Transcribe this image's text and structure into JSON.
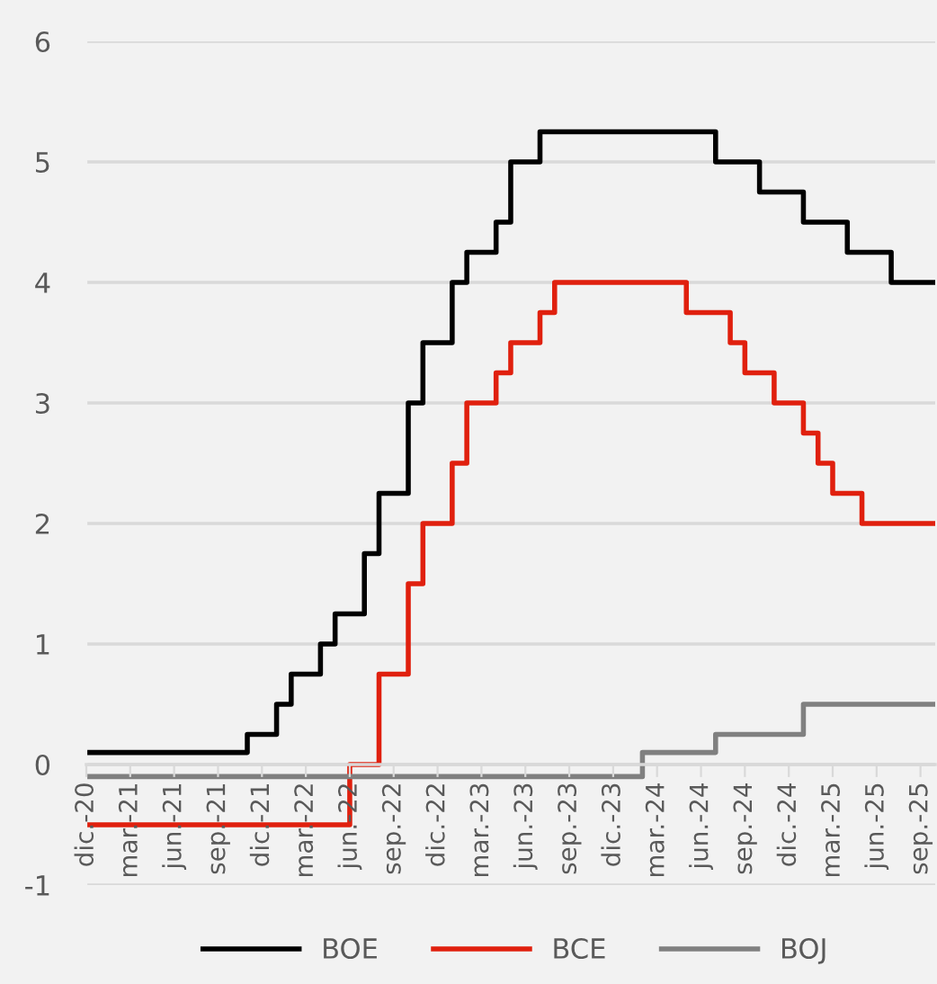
{
  "chart_data": {
    "type": "step",
    "categories": [
      "dic.-20",
      null,
      null,
      "mar.-21",
      null,
      null,
      "jun.-21",
      null,
      null,
      "sep.-21",
      null,
      null,
      "dic.-21",
      null,
      null,
      "mar.-22",
      null,
      null,
      "jun.-22",
      null,
      null,
      "sep.-22",
      null,
      null,
      "dic.-22",
      null,
      null,
      "mar.-23",
      null,
      null,
      "jun.-23",
      null,
      null,
      "sep.-23",
      null,
      null,
      "dic.-23",
      null,
      null,
      "mar.-24",
      null,
      null,
      "jun.-24",
      null,
      null,
      "sep.-24",
      null,
      null,
      "dic.-24",
      null,
      null,
      "mar.-25",
      null,
      null,
      "jun.-25",
      null,
      null,
      "sep.-25",
      null
    ],
    "series": [
      {
        "name": "BOE",
        "color": "#000000",
        "values": [
          0.1,
          0.1,
          0.1,
          0.1,
          0.1,
          0.1,
          0.1,
          0.1,
          0.1,
          0.1,
          0.1,
          0.25,
          0.25,
          0.5,
          0.75,
          0.75,
          1.0,
          1.25,
          1.25,
          1.75,
          2.25,
          2.25,
          3.0,
          3.5,
          3.5,
          4.0,
          4.25,
          4.25,
          4.5,
          5.0,
          5.0,
          5.25,
          5.25,
          5.25,
          5.25,
          5.25,
          5.25,
          5.25,
          5.25,
          5.25,
          5.25,
          5.25,
          5.25,
          5.0,
          5.0,
          5.0,
          4.75,
          4.75,
          4.75,
          4.5,
          4.5,
          4.5,
          4.25,
          4.25,
          4.25,
          4.0,
          4.0,
          4.0,
          4.0
        ]
      },
      {
        "name": "BCE",
        "color": "#e0200e",
        "values": [
          -0.5,
          -0.5,
          -0.5,
          -0.5,
          -0.5,
          -0.5,
          -0.5,
          -0.5,
          -0.5,
          -0.5,
          -0.5,
          -0.5,
          -0.5,
          -0.5,
          -0.5,
          -0.5,
          -0.5,
          -0.5,
          0,
          0,
          0.75,
          0.75,
          1.5,
          2.0,
          2.0,
          2.5,
          3.0,
          3.0,
          3.25,
          3.5,
          3.5,
          3.75,
          4.0,
          4.0,
          4.0,
          4.0,
          4.0,
          4.0,
          4.0,
          4.0,
          4.0,
          3.75,
          3.75,
          3.75,
          3.5,
          3.25,
          3.25,
          3.0,
          3.0,
          2.75,
          2.5,
          2.25,
          2.25,
          2.0,
          2.0,
          2.0,
          2.0,
          2.0,
          2.0
        ]
      },
      {
        "name": "BOJ",
        "color": "#808080",
        "values": [
          -0.1,
          -0.1,
          -0.1,
          -0.1,
          -0.1,
          -0.1,
          -0.1,
          -0.1,
          -0.1,
          -0.1,
          -0.1,
          -0.1,
          -0.1,
          -0.1,
          -0.1,
          -0.1,
          -0.1,
          -0.1,
          -0.1,
          -0.1,
          -0.1,
          -0.1,
          -0.1,
          -0.1,
          -0.1,
          -0.1,
          -0.1,
          -0.1,
          -0.1,
          -0.1,
          -0.1,
          -0.1,
          -0.1,
          -0.1,
          -0.1,
          -0.1,
          -0.1,
          -0.1,
          0.1,
          0.1,
          0.1,
          0.1,
          0.1,
          0.25,
          0.25,
          0.25,
          0.25,
          0.25,
          0.25,
          0.5,
          0.5,
          0.5,
          0.5,
          0.5,
          0.5,
          0.5,
          0.5,
          0.5,
          0.5
        ]
      }
    ],
    "ylim": [
      -1,
      6
    ],
    "yticks": [
      -1,
      0,
      1,
      2,
      3,
      4,
      5,
      6
    ],
    "grid": "y",
    "legend": "bottom",
    "line_style": "solid",
    "marker": "none"
  }
}
